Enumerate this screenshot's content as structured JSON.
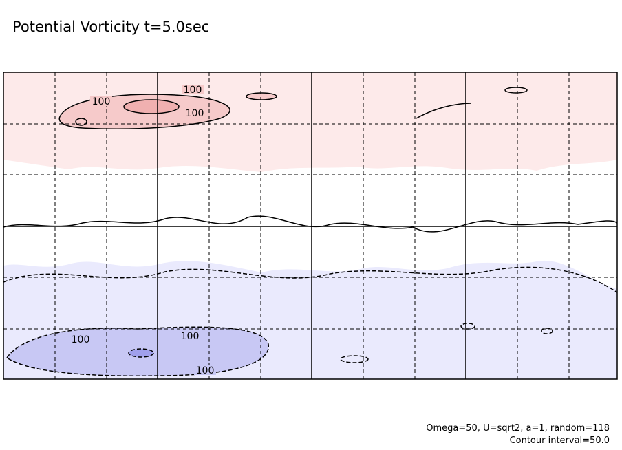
{
  "title": "Potential Vorticity t=5.0sec",
  "contour_labels": [
    100,
    100,
    100,
    100,
    100,
    100
  ],
  "caption": [
    "Omega=50, U=sqrt2, a=1, random=118",
    "Contour interval=50.0"
  ]
}
